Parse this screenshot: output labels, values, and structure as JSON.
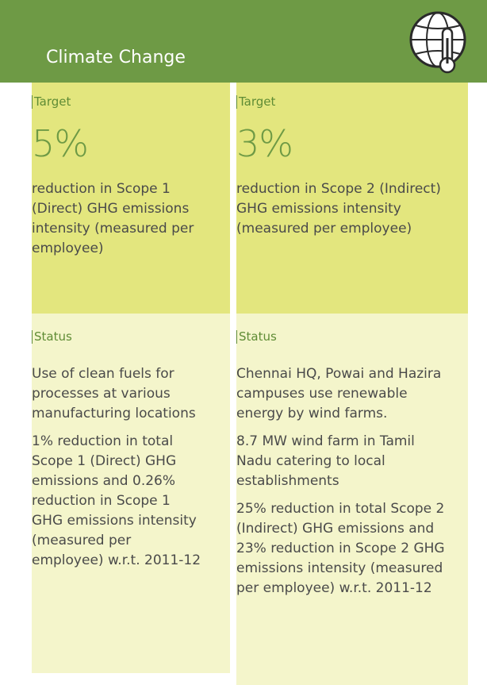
{
  "header": {
    "title": "Climate Change"
  },
  "columns": [
    {
      "target_label": "Target",
      "target_value": "5%",
      "target_text": "reduction in Scope 1 (Direct) GHG emissions intensity (measured per employee)",
      "status_label": "Status",
      "status_items": [
        "Use of clean fuels for processes at various manufacturing locations",
        "1% reduction in total Scope 1 (Direct) GHG emissions and 0.26% reduction in Scope 1 GHG emissions intensity (measured per employee) w.r.t. 2011-12"
      ]
    },
    {
      "target_label": "Target",
      "target_value": "3%",
      "target_text": "reduction in Scope 2 (Indirect) GHG emissions intensity (measured per employee)",
      "status_label": "Status",
      "status_items": [
        "Chennai HQ, Powai and Hazira campuses use renewable energy by wind farms.",
        "8.7 MW wind farm in Tamil Nadu catering to local establishments",
        "25% reduction in total Scope 2 (Indirect) GHG emissions and 23% reduction in Scope 2 GHG emissions intensity (measured per employee) w.r.t. 2011-12"
      ]
    }
  ]
}
